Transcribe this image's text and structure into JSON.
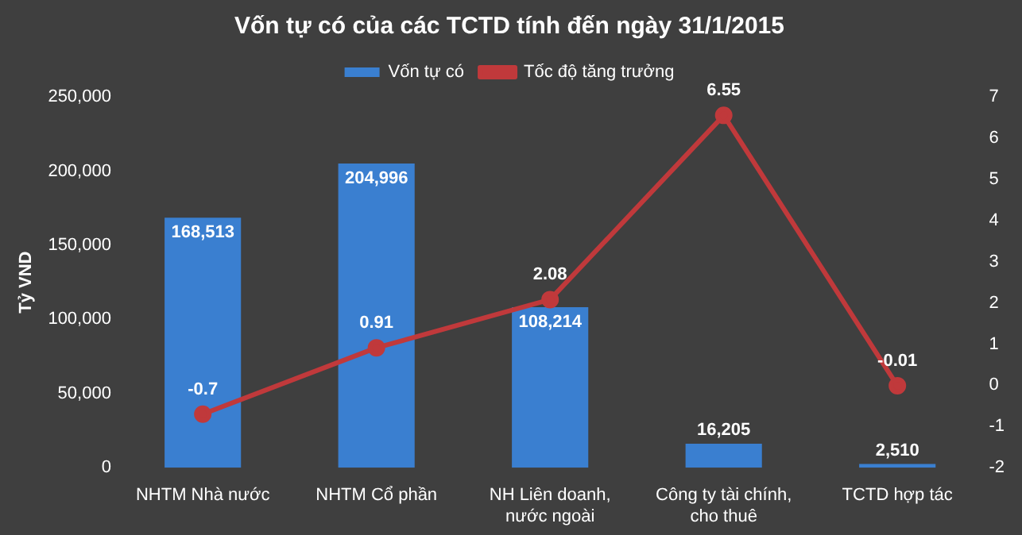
{
  "chart_data": {
    "type": "bar",
    "title": "Vốn tự có của các TCTD tính đến ngày 31/1/2015",
    "ylabel": "Tỷ VND",
    "categories": [
      "NHTM Nhà nước",
      "NHTM Cổ phần",
      "NH Liên doanh, nước ngoài",
      "Công ty tài chính, cho thuê",
      "TCTD hợp tác"
    ],
    "series": [
      {
        "name": "Vốn tự có",
        "color": "#3a7fd0",
        "values": [
          168513,
          204996,
          108214,
          16205,
          2510
        ],
        "value_labels": [
          "168,513",
          "204,996",
          "108,214",
          "16,205",
          "2,510"
        ]
      },
      {
        "name": "Tốc độ tăng trưởng",
        "type": "line",
        "axis": "y2",
        "color": "#c0393b",
        "marker": "circle",
        "values": [
          -0.7,
          0.91,
          2.08,
          6.55,
          -0.01
        ],
        "value_labels": [
          "-0.7",
          "0.91",
          "2.08",
          "6.55",
          "-0.01"
        ]
      }
    ],
    "ylim": [
      0,
      250000
    ],
    "yticks": [
      0,
      {
        "value": 50000,
        "label": "50,000"
      },
      {
        "value": 100000,
        "label": "100,000"
      },
      {
        "value": 150000,
        "label": "150,000"
      },
      {
        "value": 200000,
        "label": "200,000"
      },
      {
        "value": 250000,
        "label": "250,000"
      }
    ],
    "y2lim": [
      -2,
      7
    ],
    "y2ticks": [
      -2,
      -1,
      0,
      1,
      2,
      3,
      4,
      5,
      6,
      7
    ],
    "grid": false,
    "legend": "top"
  }
}
